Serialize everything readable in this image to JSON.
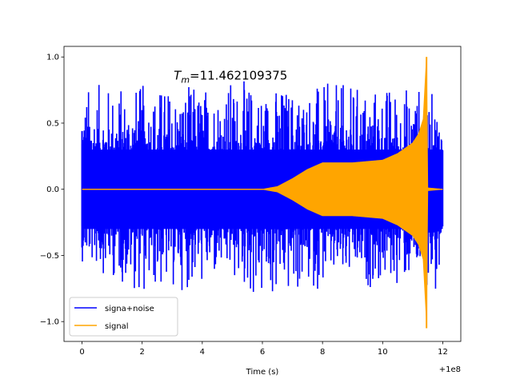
{
  "chart_data": {
    "type": "line",
    "title": "",
    "xlabel": "Time (s)",
    "ylabel": "",
    "x_offset_label": "+1e8",
    "xlim": [
      -0.6,
      12.6
    ],
    "ylim": [
      -1.15,
      1.08
    ],
    "xticks": [
      0,
      2,
      4,
      6,
      8,
      10,
      12
    ],
    "xtick_labels": [
      "0",
      "2",
      "4",
      "6",
      "8",
      "10",
      "12"
    ],
    "yticks": [
      -1.0,
      -0.5,
      0.0,
      0.5,
      1.0
    ],
    "ytick_labels": [
      "−1.0",
      "−0.5",
      "0.0",
      "0.5",
      "1.0"
    ],
    "grid": false,
    "legend_position": "lower-left",
    "annotation": {
      "symbol": "T",
      "subscript": "m",
      "value_text": "=11.462109375",
      "x": 3.05,
      "y": 0.83
    },
    "series": [
      {
        "name": "signa+noise",
        "color": "#0000ff",
        "x_range": [
          0,
          12
        ],
        "noise_envelope": [
          {
            "x": 0.0,
            "max": 0.8,
            "min": -0.55
          },
          {
            "x": 2.0,
            "max": 0.8,
            "min": -0.8
          },
          {
            "x": 4.0,
            "max": 0.8,
            "min": -0.75
          },
          {
            "x": 4.85,
            "max": 0.85,
            "min": -0.7
          },
          {
            "x": 6.0,
            "max": 0.8,
            "min": -0.9
          },
          {
            "x": 8.0,
            "max": 0.8,
            "min": -0.75
          },
          {
            "x": 10.0,
            "max": 0.8,
            "min": -0.75
          },
          {
            "x": 11.45,
            "max": 0.8,
            "min": -0.72
          },
          {
            "x": 11.85,
            "max": 0.68,
            "min": -0.9
          },
          {
            "x": 12.0,
            "max": 0.62,
            "min": -0.7
          }
        ]
      },
      {
        "name": "signal",
        "color": "#ffa500",
        "x_range": [
          0,
          12
        ],
        "amplitude_envelope": [
          {
            "x": 0.0,
            "amp": 0.0
          },
          {
            "x": 6.0,
            "amp": 0.0
          },
          {
            "x": 6.5,
            "amp": 0.02
          },
          {
            "x": 7.0,
            "amp": 0.08
          },
          {
            "x": 7.5,
            "amp": 0.15
          },
          {
            "x": 8.0,
            "amp": 0.2
          },
          {
            "x": 9.0,
            "amp": 0.2
          },
          {
            "x": 10.0,
            "amp": 0.22
          },
          {
            "x": 10.5,
            "amp": 0.27
          },
          {
            "x": 11.0,
            "amp": 0.35
          },
          {
            "x": 11.2,
            "amp": 0.42
          },
          {
            "x": 11.35,
            "amp": 0.53
          },
          {
            "x": 11.46,
            "amp": 1.0
          },
          {
            "x": 11.5,
            "amp": 0.01
          },
          {
            "x": 12.0,
            "amp": 0.0
          }
        ],
        "peak": {
          "x": 11.46,
          "max": 1.0,
          "min": -1.05
        }
      }
    ]
  }
}
